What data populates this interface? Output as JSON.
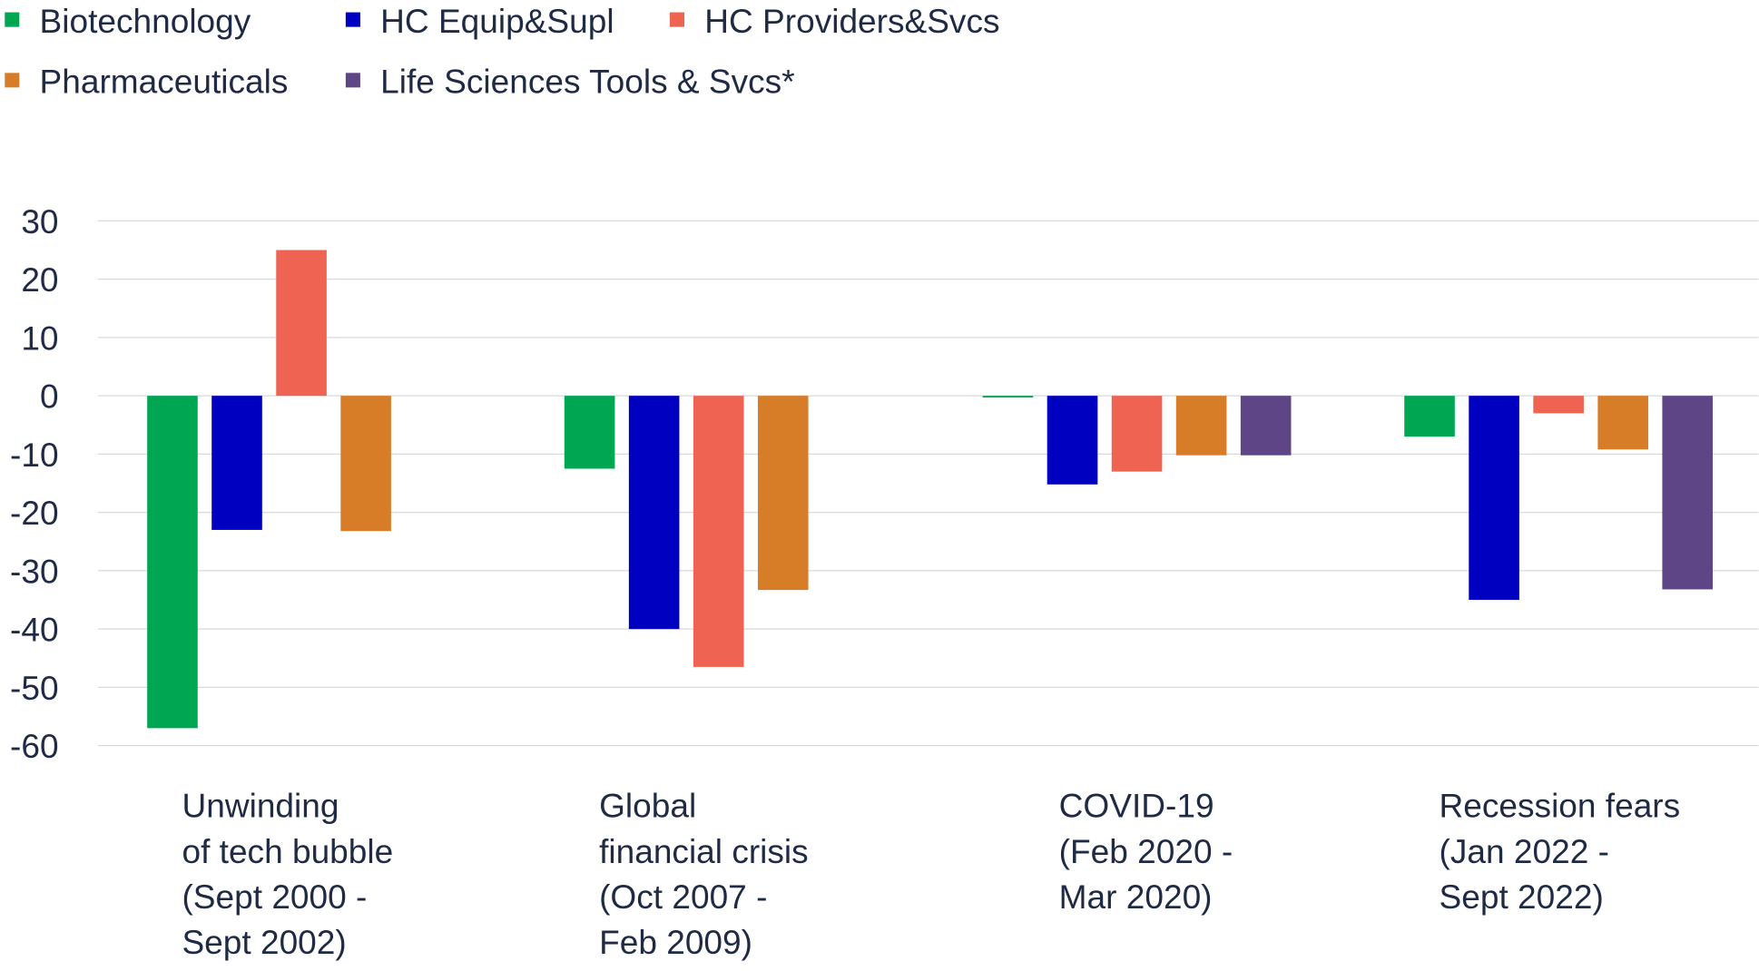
{
  "chart_data": {
    "type": "bar",
    "title": "",
    "xlabel": "",
    "ylabel": "",
    "ylim": [
      -60,
      30
    ],
    "yticks": [
      30,
      20,
      10,
      0,
      -10,
      -20,
      -30,
      -40,
      -50,
      -60
    ],
    "grid": true,
    "legend_position": "top-left",
    "categories": [
      [
        "Unwinding",
        "of tech bubble",
        "(Sept 2000 -",
        "Sept 2002)"
      ],
      [
        "Global",
        "financial crisis",
        "(Oct 2007 -",
        "Feb 2009)"
      ],
      [
        "COVID-19",
        "(Feb 2020 -",
        "Mar 2020)"
      ],
      [
        "Recession fears",
        "(Jan 2022 -",
        "Sept 2022)"
      ]
    ],
    "series": [
      {
        "name": "Biotechnology",
        "color": "#00a651",
        "values": [
          -57,
          -12.5,
          -0.3,
          -7
        ]
      },
      {
        "name": "HC Equip&Supl",
        "color": "#0000c0",
        "values": [
          -23,
          -40,
          -15.2,
          -35
        ]
      },
      {
        "name": "HC Providers&Svcs",
        "color": "#ee6352",
        "values": [
          25,
          -46.5,
          -13,
          -3
        ]
      },
      {
        "name": "Pharmaceuticals",
        "color": "#d87d27",
        "values": [
          -23.2,
          -33.3,
          -10.2,
          -9.2
        ]
      },
      {
        "name": "Life Sciences Tools & Svcs*",
        "color": "#5e4585",
        "values": [
          null,
          null,
          -10.2,
          -33.2
        ]
      }
    ]
  }
}
